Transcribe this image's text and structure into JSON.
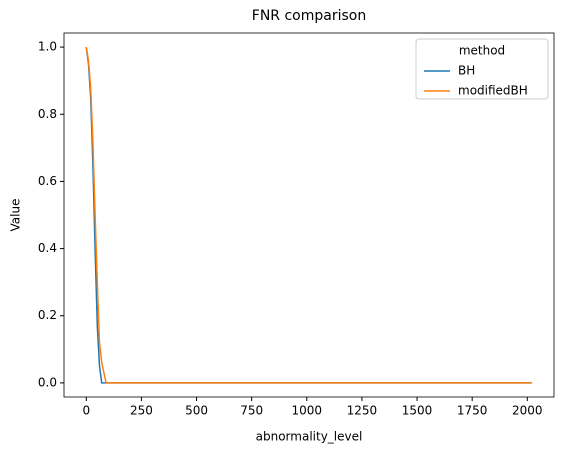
{
  "chart_data": {
    "type": "line",
    "title": "FNR comparison",
    "x_label": "abnormality_level",
    "y_label": "Value",
    "legend_title": "method",
    "legend_position": "upper right",
    "x": [
      0,
      10,
      20,
      30,
      40,
      50,
      60,
      70,
      80,
      90,
      100,
      500,
      1000,
      1500,
      2020
    ],
    "series": [
      {
        "name": "BH",
        "color": "#1f77b4",
        "values": [
          1.0,
          0.95,
          0.85,
          0.65,
          0.4,
          0.17,
          0.05,
          0.0,
          0.0,
          0.0,
          0.0,
          0.0,
          0.0,
          0.0,
          0.0
        ]
      },
      {
        "name": "modifiedBH",
        "color": "#ff7f0e",
        "values": [
          1.0,
          0.96,
          0.88,
          0.72,
          0.5,
          0.3,
          0.12,
          0.06,
          0.03,
          0.0,
          0.0,
          0.0,
          0.0,
          0.0,
          0.0
        ]
      }
    ],
    "xlim": [
      -101,
      2121
    ],
    "xticks": [
      0,
      250,
      500,
      750,
      1000,
      1250,
      1500,
      1750,
      2000
    ],
    "ylim": [
      -0.042,
      1.042
    ],
    "yticks": [
      {
        "value": 0,
        "label": "0.0"
      },
      {
        "value": 0.2,
        "label": "0.2"
      },
      {
        "value": 0.4,
        "label": "0.4"
      },
      {
        "value": 0.6,
        "label": "0.6"
      },
      {
        "value": 0.8,
        "label": "0.8"
      },
      {
        "value": 1,
        "label": "1.0"
      }
    ]
  }
}
